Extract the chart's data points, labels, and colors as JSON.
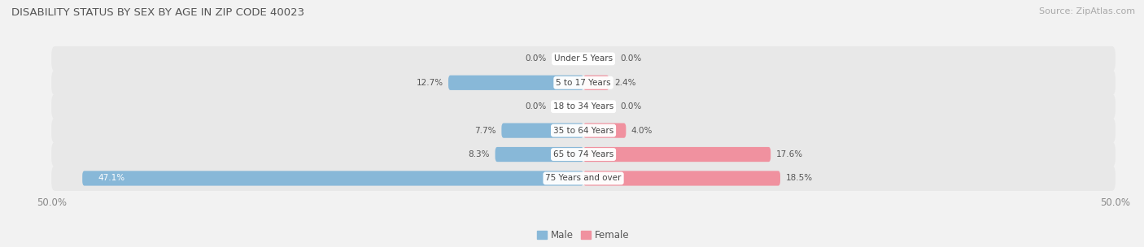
{
  "title": "DISABILITY STATUS BY SEX BY AGE IN ZIP CODE 40023",
  "source": "Source: ZipAtlas.com",
  "categories": [
    "Under 5 Years",
    "5 to 17 Years",
    "18 to 34 Years",
    "35 to 64 Years",
    "65 to 74 Years",
    "75 Years and over"
  ],
  "male_values": [
    0.0,
    12.7,
    0.0,
    7.7,
    8.3,
    47.1
  ],
  "female_values": [
    0.0,
    2.4,
    0.0,
    4.0,
    17.6,
    18.5
  ],
  "male_color": "#88b8d8",
  "female_color": "#f0919f",
  "male_label": "Male",
  "female_label": "Female",
  "row_bg_color": "#e8e8e8",
  "fig_bg_color": "#f2f2f2",
  "title_color": "#555555",
  "source_color": "#999999",
  "value_color_dark": "#555555",
  "value_color_light": "white",
  "xlim_left": -50,
  "xlim_right": 50,
  "axis_tick_left": "50.0%",
  "axis_tick_right": "50.0%"
}
